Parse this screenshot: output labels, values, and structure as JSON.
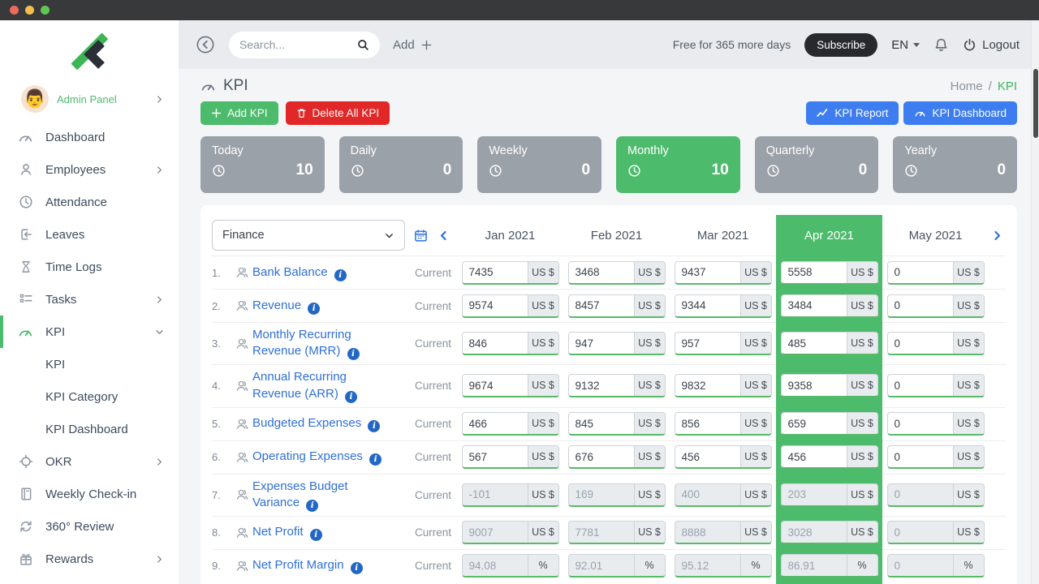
{
  "window": {
    "dots": [
      "#ee6a5f",
      "#f4bf4f",
      "#61c554"
    ]
  },
  "topbar": {
    "search_placeholder": "Search...",
    "add_label": "Add",
    "trial_text": "Free for 365 more days",
    "subscribe_label": "Subscribe",
    "language": "EN",
    "logout_label": "Logout",
    "icons": [
      "back-circle-icon",
      "search-icon",
      "plus-icon",
      "caret-down-icon",
      "bell-icon",
      "power-icon"
    ]
  },
  "sidebar": {
    "profile": {
      "name": "Admin Panel",
      "avatar": "man-emoji"
    },
    "items": [
      {
        "label": "Dashboard",
        "icon": "gauge"
      },
      {
        "label": "Employees",
        "icon": "user",
        "chevron": "right"
      },
      {
        "label": "Attendance",
        "icon": "clock"
      },
      {
        "label": "Leaves",
        "icon": "leave"
      },
      {
        "label": "Time Logs",
        "icon": "hourglass"
      },
      {
        "label": "Tasks",
        "icon": "tasks",
        "chevron": "right"
      },
      {
        "label": "KPI",
        "icon": "gauge",
        "chevron": "down",
        "active": true
      },
      {
        "label": "KPI",
        "sub": true
      },
      {
        "label": "KPI Category",
        "sub": true
      },
      {
        "label": "KPI Dashboard",
        "sub": true
      },
      {
        "label": "OKR",
        "icon": "target",
        "chevron": "right"
      },
      {
        "label": "Weekly Check-in",
        "icon": "notebook"
      },
      {
        "label": "360° Review",
        "icon": "refresh"
      },
      {
        "label": "Rewards",
        "icon": "gift",
        "chevron": "right"
      }
    ]
  },
  "page": {
    "title": "KPI",
    "breadcrumb": [
      "Home",
      "KPI"
    ],
    "breadcrumb_separator": "/",
    "actions": {
      "add": "Add KPI",
      "delete_all": "Delete All KPI",
      "report": "KPI Report",
      "dashboard": "KPI Dashboard"
    }
  },
  "period_cards": [
    {
      "label": "Today",
      "value": "10",
      "active": false
    },
    {
      "label": "Daily",
      "value": "0",
      "active": false
    },
    {
      "label": "Weekly",
      "value": "0",
      "active": false
    },
    {
      "label": "Monthly",
      "value": "10",
      "active": true
    },
    {
      "label": "Quarterly",
      "value": "0",
      "active": false
    },
    {
      "label": "Yearly",
      "value": "0",
      "active": false
    }
  ],
  "kpi_table": {
    "category_select": "Finance",
    "months": [
      "Jan 2021",
      "Feb 2021",
      "Mar 2021",
      "Apr 2021",
      "May 2021"
    ],
    "active_month_index": 3,
    "current_label": "Current",
    "rows": [
      {
        "num": "1.",
        "name": "Bank Balance",
        "unit": "US $",
        "disabled": false,
        "values": [
          "7435",
          "3468",
          "9437",
          "5558",
          "0"
        ]
      },
      {
        "num": "2.",
        "name": "Revenue",
        "unit": "US $",
        "disabled": false,
        "values": [
          "9574",
          "8457",
          "9344",
          "3484",
          "0"
        ]
      },
      {
        "num": "3.",
        "name": "Monthly Recurring Revenue (MRR)",
        "unit": "US $",
        "disabled": false,
        "values": [
          "846",
          "947",
          "957",
          "485",
          "0"
        ]
      },
      {
        "num": "4.",
        "name": "Annual Recurring Revenue (ARR)",
        "unit": "US $",
        "disabled": false,
        "values": [
          "9674",
          "9132",
          "9832",
          "9358",
          "0"
        ]
      },
      {
        "num": "5.",
        "name": "Budgeted Expenses",
        "unit": "US $",
        "disabled": false,
        "values": [
          "466",
          "845",
          "856",
          "659",
          "0"
        ]
      },
      {
        "num": "6.",
        "name": "Operating Expenses",
        "unit": "US $",
        "disabled": false,
        "values": [
          "567",
          "676",
          "456",
          "456",
          "0"
        ]
      },
      {
        "num": "7.",
        "name": "Expenses Budget Variance",
        "unit": "US $",
        "disabled": true,
        "values": [
          "-101",
          "169",
          "400",
          "203",
          "0"
        ]
      },
      {
        "num": "8.",
        "name": "Net Profit",
        "unit": "US $",
        "disabled": true,
        "values": [
          "9007",
          "7781",
          "8888",
          "3028",
          "0"
        ]
      },
      {
        "num": "9.",
        "name": "Net Profit Margin",
        "unit": "%",
        "disabled": true,
        "values": [
          "94.08",
          "92.01",
          "95.12",
          "86.91",
          "0"
        ]
      }
    ]
  },
  "colors": {
    "accent_green": "#4cbb6c",
    "danger_red": "#e12727",
    "primary_blue": "#3d7df0",
    "link_blue": "#2e6fd8",
    "card_gray": "#9ba1a8"
  }
}
